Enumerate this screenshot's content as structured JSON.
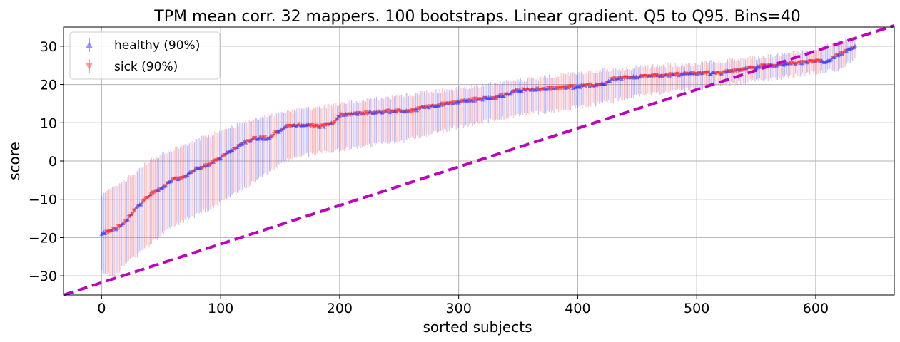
{
  "chart_data": {
    "type": "scatter",
    "title": "TPM mean corr. 32 mappers. 100 bootstraps. Linear gradient. Q5 to Q95. Bins=40",
    "xlabel": "sorted subjects",
    "ylabel": "score",
    "xlim": [
      -32,
      666
    ],
    "ylim": [
      -35,
      35
    ],
    "xticks": [
      0,
      100,
      200,
      300,
      400,
      500,
      600
    ],
    "yticks": [
      -30,
      -20,
      -10,
      0,
      10,
      20,
      30
    ],
    "xtick_labels": [
      "0",
      "100",
      "200",
      "300",
      "400",
      "500",
      "600"
    ],
    "ytick_labels": [
      "−30",
      "−20",
      "−10",
      "0",
      "10",
      "20",
      "30"
    ],
    "grid": true,
    "legend_position": "top-left",
    "n_subjects": 634,
    "series": [
      {
        "name": "healthy (90%)",
        "marker": "triangle-up",
        "color": "#0000ff"
      },
      {
        "name": "sick (90%)",
        "marker": "triangle-down",
        "color": "#ff0000"
      }
    ],
    "median_curve": {
      "x": [
        0,
        10,
        20,
        30,
        40,
        50,
        60,
        70,
        80,
        90,
        100,
        110,
        120,
        130,
        140,
        150,
        155,
        170,
        185,
        195,
        200,
        220,
        240,
        260,
        270,
        290,
        310,
        330,
        350,
        380,
        400,
        420,
        430,
        450,
        480,
        500,
        520,
        540,
        560,
        580,
        600,
        610,
        620,
        634
      ],
      "y": [
        -19,
        -18,
        -16,
        -12,
        -9,
        -7,
        -5,
        -4,
        -2,
        -1,
        1,
        3,
        5,
        6,
        6,
        8,
        9,
        9.5,
        9,
        10,
        12,
        12.5,
        13,
        13,
        14,
        15,
        16,
        16.5,
        18.5,
        19,
        19.5,
        20,
        21.5,
        22,
        22.5,
        23,
        23,
        24,
        25,
        25.5,
        26,
        26,
        28,
        30
      ]
    },
    "upper_curve": {
      "x": [
        0,
        5,
        20,
        40,
        60,
        80,
        100,
        120,
        140,
        160,
        200,
        250,
        300,
        350,
        400,
        450,
        500,
        550,
        600,
        620,
        634
      ],
      "y": [
        -9,
        -8,
        -5,
        0,
        3,
        5.5,
        8,
        10,
        12,
        13,
        15,
        17,
        19,
        21,
        23,
        24.5,
        25.5,
        27,
        29,
        31,
        32
      ]
    },
    "lower_curve": {
      "x": [
        0,
        10,
        20,
        40,
        60,
        80,
        100,
        120,
        140,
        160,
        200,
        250,
        300,
        350,
        400,
        450,
        500,
        550,
        600,
        620,
        634
      ],
      "y": [
        -29,
        -30,
        -27,
        -22,
        -17,
        -14,
        -11,
        -7,
        -3,
        1,
        3,
        5,
        9,
        12,
        14,
        17,
        19,
        21,
        23,
        24,
        27
      ]
    },
    "diagonal_line": {
      "x": [
        -32,
        666
      ],
      "y": [
        -35,
        35.4
      ],
      "color": "#bf00bf",
      "style": "dashed"
    }
  }
}
